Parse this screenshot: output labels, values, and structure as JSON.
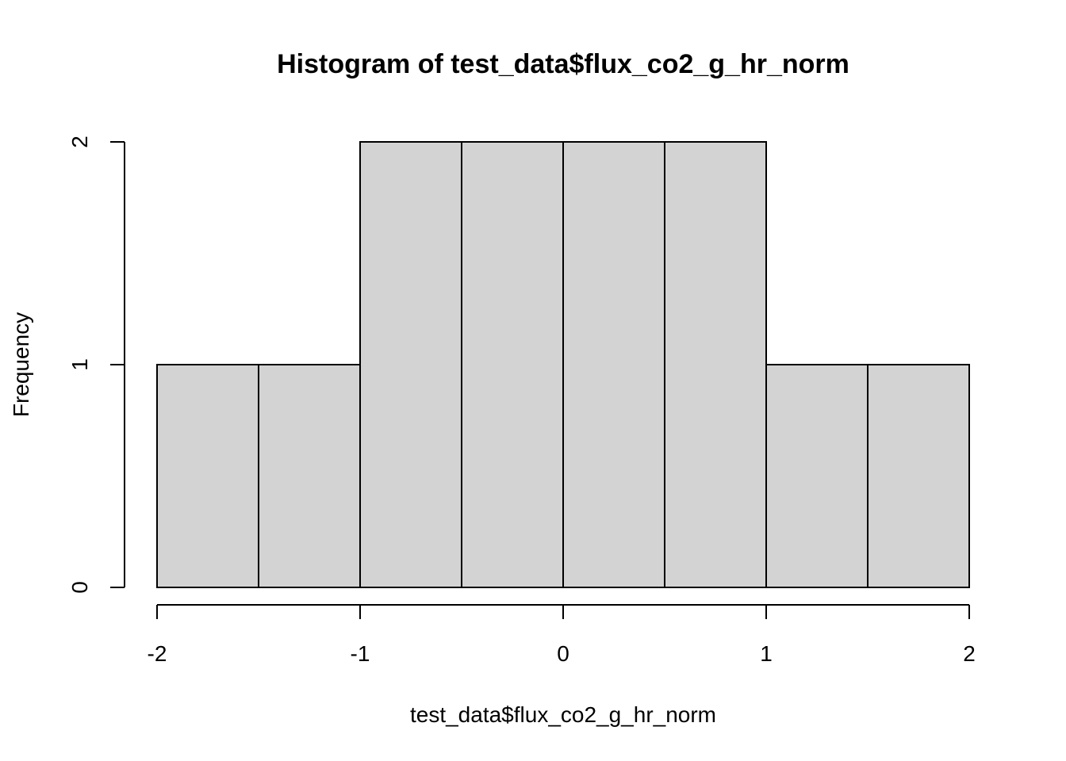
{
  "chart_data": {
    "type": "bar",
    "title": "Histogram of test_data$flux_co2_g_hr_norm",
    "xlabel": "test_data$flux_co2_g_hr_norm",
    "ylabel": "Frequency",
    "bins": [
      {
        "from": -2.0,
        "to": -1.5,
        "count": 1
      },
      {
        "from": -1.5,
        "to": -1.0,
        "count": 1
      },
      {
        "from": -1.0,
        "to": -0.5,
        "count": 2
      },
      {
        "from": -0.5,
        "to": 0.0,
        "count": 2
      },
      {
        "from": 0.0,
        "to": 0.5,
        "count": 2
      },
      {
        "from": 0.5,
        "to": 1.0,
        "count": 2
      },
      {
        "from": 1.0,
        "to": 1.5,
        "count": 1
      },
      {
        "from": 1.5,
        "to": 2.0,
        "count": 1
      }
    ],
    "xlim": [
      -2,
      2
    ],
    "ylim": [
      0,
      2
    ],
    "xticks": [
      -2,
      -1,
      0,
      1,
      2
    ],
    "yticks": [
      0,
      1,
      2
    ],
    "grid": false,
    "bar_color": "#d3d3d3",
    "edge_color": "#000000"
  }
}
